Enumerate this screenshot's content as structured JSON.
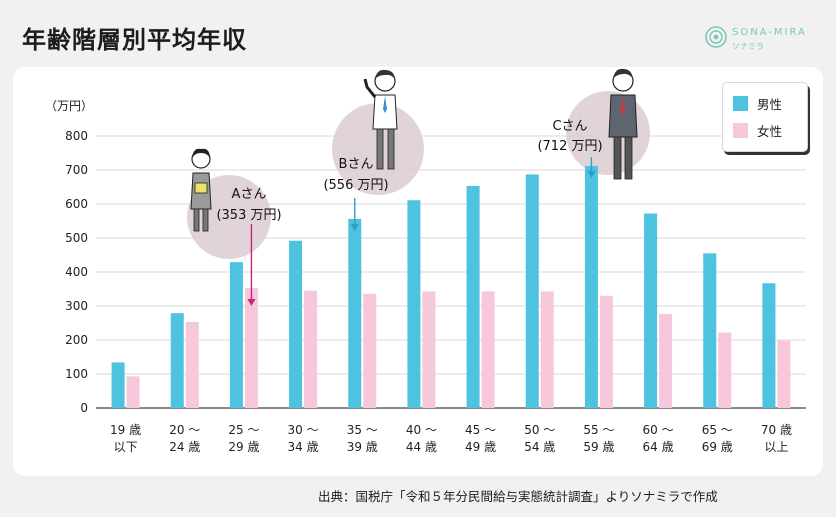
{
  "title": "年齢階層別平均年収",
  "brand": {
    "name": "SONA-MIRA",
    "sub": "ソナミラ"
  },
  "source": "出典：国税庁「令和５年分民間給与実態統計調査」よりソナミラで作成",
  "colors": {
    "male": "#4dc3e0",
    "female": "#f7c7dc",
    "arrow_female": "#c4267a",
    "arrow_male": "#2f9ec8"
  },
  "chart_data": {
    "type": "bar",
    "ylabel": "（万円）",
    "ylim": [
      0,
      800
    ],
    "yticks": [
      0,
      100,
      200,
      300,
      400,
      500,
      600,
      700,
      800
    ],
    "categories": [
      [
        "19 歳",
        "以下"
      ],
      [
        "20 〜",
        "24 歳"
      ],
      [
        "25 〜",
        "29 歳"
      ],
      [
        "30 〜",
        "34 歳"
      ],
      [
        "35 〜",
        "39 歳"
      ],
      [
        "40 〜",
        "44 歳"
      ],
      [
        "45 〜",
        "49 歳"
      ],
      [
        "50 〜",
        "54 歳"
      ],
      [
        "55 〜",
        "59 歳"
      ],
      [
        "60 〜",
        "64 歳"
      ],
      [
        "65 〜",
        "69 歳"
      ],
      [
        "70 歳",
        "以上"
      ]
    ],
    "series": [
      {
        "name": "男性",
        "values": [
          134,
          279,
          429,
          492,
          556,
          611,
          653,
          687,
          712,
          572,
          455,
          367
        ]
      },
      {
        "name": "女性",
        "values": [
          93,
          253,
          353,
          345,
          336,
          343,
          343,
          343,
          330,
          277,
          222,
          198
        ]
      }
    ],
    "grid": true,
    "legend_position": "top-right",
    "annotations": [
      {
        "name": "Aさん",
        "value": "(353 万円)",
        "category_index": 2,
        "series": "女性"
      },
      {
        "name": "Bさん",
        "value": "(556 万円)",
        "category_index": 4,
        "series": "男性"
      },
      {
        "name": "Cさん",
        "value": "(712 万円)",
        "category_index": 8,
        "series": "男性"
      }
    ]
  }
}
